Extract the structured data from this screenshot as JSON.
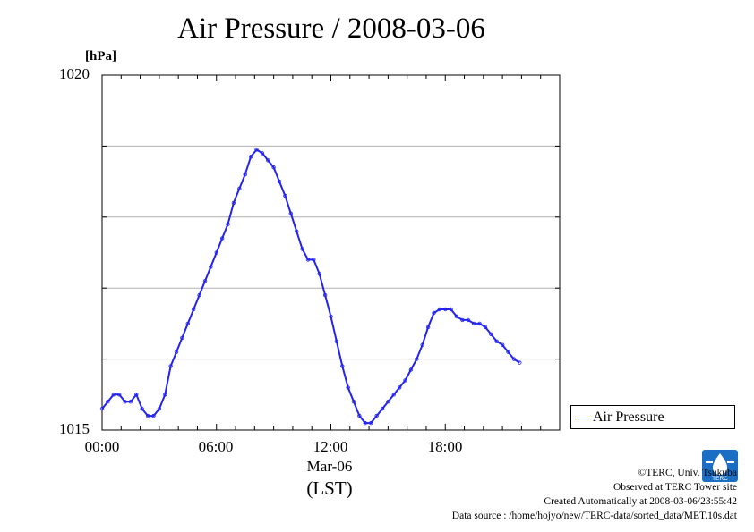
{
  "title": "Air Pressure / 2008-03-06",
  "y_unit": "[hPa]",
  "legend": {
    "label": "Air Pressure",
    "color": "#2323ee"
  },
  "x_date_label": "Mar-06",
  "x_axis_label": "(LST)",
  "footer": {
    "copyright": "©TERC, Univ. Tsukuba",
    "site": "Observed at TERC Tower site",
    "created": "Created Automatically at 2008-03-06/23:55:42",
    "source": "Data source : /home/hojyo/new/TERC-data/sorted_data/MET.10s.dat"
  },
  "logo": {
    "text": "TERC",
    "color": "#1a6fc4"
  },
  "chart_data": {
    "type": "line",
    "title": "Air Pressure / 2008-03-06",
    "ylabel": "[hPa]",
    "xlabel": "(LST)",
    "ylim": [
      1015,
      1020
    ],
    "xlim": [
      0,
      24
    ],
    "y_ticks": [
      "1015",
      "1020"
    ],
    "y_gridlines": [
      1016,
      1017,
      1018,
      1019
    ],
    "x_ticks": [
      {
        "hour": 0,
        "label": "00:00"
      },
      {
        "hour": 6,
        "label": "06:00"
      },
      {
        "hour": 12,
        "label": "12:00"
      },
      {
        "hour": 18,
        "label": "18:00"
      }
    ],
    "grid": "horizontal",
    "legend_position": "right",
    "series": [
      {
        "name": "Air Pressure",
        "color": "#2323ee",
        "points": [
          [
            0.0,
            1015.3
          ],
          [
            0.3,
            1015.4
          ],
          [
            0.6,
            1015.5
          ],
          [
            0.9,
            1015.5
          ],
          [
            1.2,
            1015.4
          ],
          [
            1.5,
            1015.4
          ],
          [
            1.8,
            1015.5
          ],
          [
            2.1,
            1015.3
          ],
          [
            2.4,
            1015.2
          ],
          [
            2.7,
            1015.2
          ],
          [
            3.0,
            1015.3
          ],
          [
            3.3,
            1015.5
          ],
          [
            3.6,
            1015.9
          ],
          [
            3.9,
            1016.1
          ],
          [
            4.2,
            1016.3
          ],
          [
            4.5,
            1016.5
          ],
          [
            4.8,
            1016.7
          ],
          [
            5.1,
            1016.9
          ],
          [
            5.4,
            1017.1
          ],
          [
            5.7,
            1017.3
          ],
          [
            6.0,
            1017.5
          ],
          [
            6.3,
            1017.7
          ],
          [
            6.6,
            1017.9
          ],
          [
            6.9,
            1018.2
          ],
          [
            7.2,
            1018.4
          ],
          [
            7.5,
            1018.6
          ],
          [
            7.8,
            1018.85
          ],
          [
            8.1,
            1018.95
          ],
          [
            8.4,
            1018.9
          ],
          [
            8.7,
            1018.8
          ],
          [
            9.0,
            1018.7
          ],
          [
            9.3,
            1018.5
          ],
          [
            9.6,
            1018.3
          ],
          [
            9.9,
            1018.05
          ],
          [
            10.2,
            1017.8
          ],
          [
            10.5,
            1017.55
          ],
          [
            10.8,
            1017.4
          ],
          [
            11.1,
            1017.4
          ],
          [
            11.4,
            1017.2
          ],
          [
            11.7,
            1016.9
          ],
          [
            12.0,
            1016.6
          ],
          [
            12.3,
            1016.25
          ],
          [
            12.6,
            1015.9
          ],
          [
            12.9,
            1015.6
          ],
          [
            13.2,
            1015.4
          ],
          [
            13.5,
            1015.2
          ],
          [
            13.8,
            1015.1
          ],
          [
            14.1,
            1015.1
          ],
          [
            14.4,
            1015.2
          ],
          [
            14.7,
            1015.3
          ],
          [
            15.0,
            1015.4
          ],
          [
            15.3,
            1015.5
          ],
          [
            15.6,
            1015.6
          ],
          [
            15.9,
            1015.7
          ],
          [
            16.2,
            1015.85
          ],
          [
            16.5,
            1016.0
          ],
          [
            16.8,
            1016.2
          ],
          [
            17.1,
            1016.45
          ],
          [
            17.4,
            1016.65
          ],
          [
            17.7,
            1016.7
          ],
          [
            18.0,
            1016.7
          ],
          [
            18.3,
            1016.7
          ],
          [
            18.6,
            1016.6
          ],
          [
            18.9,
            1016.55
          ],
          [
            19.2,
            1016.55
          ],
          [
            19.5,
            1016.5
          ],
          [
            19.8,
            1016.5
          ],
          [
            20.1,
            1016.45
          ],
          [
            20.4,
            1016.35
          ],
          [
            20.7,
            1016.25
          ],
          [
            21.0,
            1016.2
          ],
          [
            21.3,
            1016.1
          ],
          [
            21.6,
            1016.0
          ],
          [
            21.9,
            1015.95
          ]
        ]
      }
    ]
  }
}
